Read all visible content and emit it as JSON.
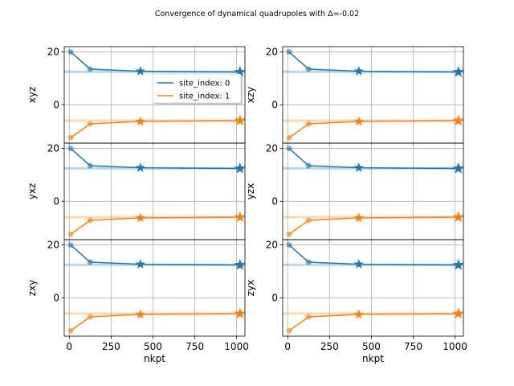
{
  "chart_data": {
    "type": "line",
    "title": "Convergence of dynamical quadrupoles with Δ=-0.02",
    "xlabel": "nkpt",
    "xlim": [
      -30,
      1050
    ],
    "ylim": [
      -14.5,
      22
    ],
    "xticks": [
      0,
      250,
      500,
      750,
      1000
    ],
    "yticks": [
      20,
      0
    ],
    "grid": true,
    "legend": {
      "placement": "center-right",
      "panel": 0,
      "entries": [
        "site_index: 0",
        "site_index: 1"
      ]
    },
    "colors": {
      "site_index: 0": "#1f77b4",
      "site_index: 1": "#ff7f0e"
    },
    "reference_lines": [
      {
        "series": "site_index: 0",
        "y": 12.5
      },
      {
        "series": "site_index: 1",
        "y": -6.0
      }
    ],
    "panels": [
      {
        "ylabel": "xyz",
        "series": [
          {
            "name": "site_index: 0",
            "x": [
              8,
              125,
              425,
              1020
            ],
            "y": [
              20.0,
              13.5,
              12.7,
              12.4
            ]
          },
          {
            "name": "site_index: 1",
            "x": [
              8,
              125,
              425,
              1020
            ],
            "y": [
              -12.5,
              -7.2,
              -6.3,
              -6.0
            ]
          }
        ]
      },
      {
        "ylabel": "xzy",
        "series": [
          {
            "name": "site_index: 0",
            "x": [
              8,
              125,
              425,
              1020
            ],
            "y": [
              20.0,
              13.5,
              12.7,
              12.4
            ]
          },
          {
            "name": "site_index: 1",
            "x": [
              8,
              125,
              425,
              1020
            ],
            "y": [
              -12.5,
              -7.2,
              -6.3,
              -6.0
            ]
          }
        ]
      },
      {
        "ylabel": "yxz",
        "series": [
          {
            "name": "site_index: 0",
            "x": [
              8,
              125,
              425,
              1020
            ],
            "y": [
              20.0,
              13.5,
              12.7,
              12.4
            ]
          },
          {
            "name": "site_index: 1",
            "x": [
              8,
              125,
              425,
              1020
            ],
            "y": [
              -12.5,
              -7.2,
              -6.3,
              -6.0
            ]
          }
        ]
      },
      {
        "ylabel": "yzx",
        "series": [
          {
            "name": "site_index: 0",
            "x": [
              8,
              125,
              425,
              1020
            ],
            "y": [
              20.0,
              13.5,
              12.7,
              12.4
            ]
          },
          {
            "name": "site_index: 1",
            "x": [
              8,
              125,
              425,
              1020
            ],
            "y": [
              -12.5,
              -7.2,
              -6.3,
              -6.0
            ]
          }
        ]
      },
      {
        "ylabel": "zxy",
        "series": [
          {
            "name": "site_index: 0",
            "x": [
              8,
              125,
              425,
              1020
            ],
            "y": [
              20.0,
              13.5,
              12.7,
              12.4
            ]
          },
          {
            "name": "site_index: 1",
            "x": [
              8,
              125,
              425,
              1020
            ],
            "y": [
              -12.5,
              -7.2,
              -6.3,
              -6.0
            ]
          }
        ]
      },
      {
        "ylabel": "zyx",
        "series": [
          {
            "name": "site_index: 0",
            "x": [
              8,
              125,
              425,
              1020
            ],
            "y": [
              20.0,
              13.5,
              12.7,
              12.4
            ]
          },
          {
            "name": "site_index: 1",
            "x": [
              8,
              125,
              425,
              1020
            ],
            "y": [
              -12.5,
              -7.2,
              -6.3,
              -6.0
            ]
          }
        ]
      }
    ]
  }
}
